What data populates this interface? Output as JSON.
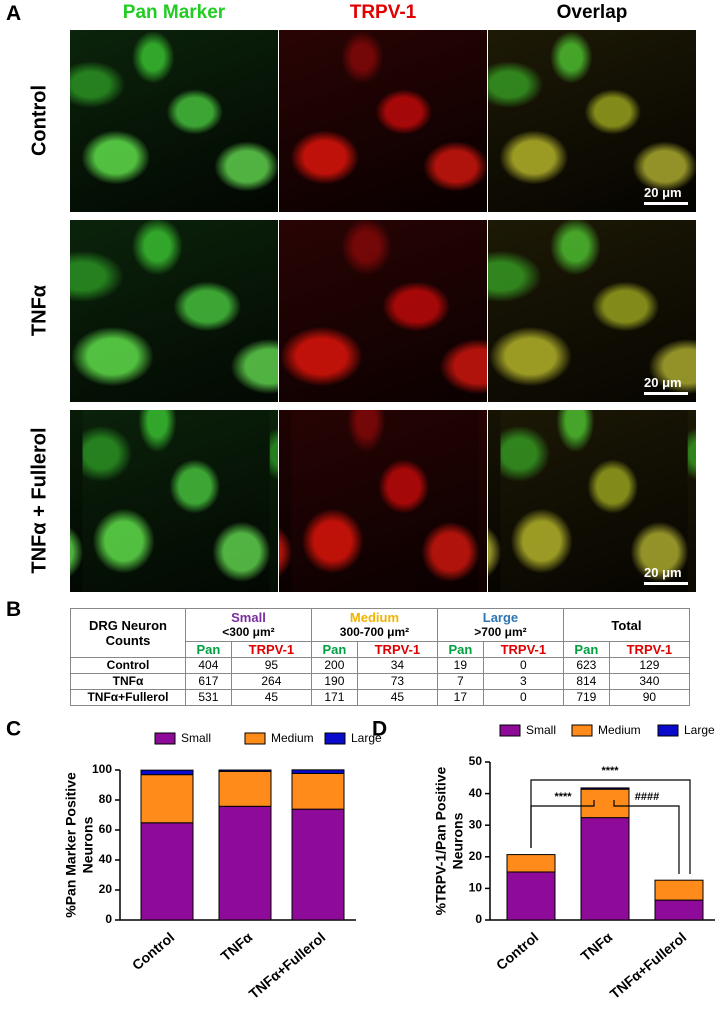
{
  "panel_a": {
    "label": "A",
    "columns": [
      "Pan Marker",
      "TRPV-1",
      "Overlap"
    ],
    "rows": [
      "Control",
      "TNFα",
      "TNFα + Fullerol"
    ],
    "scale_bar": "20 μm"
  },
  "table": {
    "label": "B",
    "corner": "DRG Neuron Counts",
    "groups": [
      {
        "name": "Small",
        "size": "<300 μm²"
      },
      {
        "name": "Medium",
        "size": "300-700 μm²"
      },
      {
        "name": "Large",
        "size": ">700 μm²"
      },
      {
        "name": "Total"
      }
    ],
    "subheaders": [
      "Pan",
      "TRPV-1"
    ],
    "rows": [
      {
        "label": "Control",
        "values": [
          404,
          95,
          200,
          34,
          19,
          0,
          623,
          129
        ]
      },
      {
        "label": "TNFα",
        "values": [
          617,
          264,
          190,
          73,
          7,
          3,
          814,
          340
        ]
      },
      {
        "label": "TNFα+Fullerol",
        "values": [
          531,
          45,
          171,
          45,
          17,
          0,
          719,
          90
        ]
      }
    ]
  },
  "chart_data": [
    {
      "type": "bar",
      "stacked": true,
      "panel": "C",
      "ylabel": [
        "%Pan Marker Positive",
        "Neurons"
      ],
      "categories": [
        "Control",
        "TNFα",
        "TNFα+Fullerol"
      ],
      "series": [
        {
          "name": "Small",
          "color": "#8e0a99",
          "values": [
            64.8,
            75.8,
            73.9
          ]
        },
        {
          "name": "Medium",
          "color": "#ff8c1a",
          "values": [
            32.1,
            23.3,
            23.8
          ]
        },
        {
          "name": "Large",
          "color": "#0a0acc",
          "values": [
            3.0,
            0.9,
            2.4
          ]
        }
      ],
      "ylim": [
        0,
        100
      ],
      "yticks": [
        0,
        20,
        40,
        60,
        80,
        100
      ]
    },
    {
      "type": "bar",
      "stacked": true,
      "panel": "D",
      "ylabel": [
        "%TRPV-1/Pan Positive",
        "Neurons"
      ],
      "categories": [
        "Control",
        "TNFα",
        "TNFα+Fullerol"
      ],
      "series": [
        {
          "name": "Small",
          "color": "#8e0a99",
          "values": [
            15.2,
            32.4,
            6.3
          ]
        },
        {
          "name": "Medium",
          "color": "#ff8c1a",
          "values": [
            5.5,
            9.0,
            6.3
          ]
        },
        {
          "name": "Large",
          "color": "#0a0acc",
          "values": [
            0,
            0.4,
            0
          ]
        }
      ],
      "ylim": [
        0,
        50
      ],
      "yticks": [
        0,
        10,
        20,
        30,
        40,
        50
      ],
      "annotations": [
        "****",
        "####",
        "****"
      ]
    }
  ]
}
